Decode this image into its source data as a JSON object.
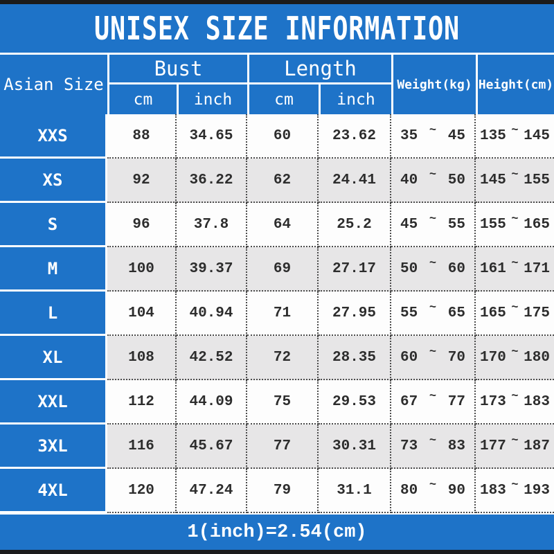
{
  "title": "UNISEX SIZE INFORMATION",
  "symbols": {
    "tilde": "~"
  },
  "header": {
    "size_column": "Asian Size",
    "bust": {
      "label": "Bust",
      "units": [
        "cm",
        "inch"
      ]
    },
    "length": {
      "label": "Length",
      "units": [
        "cm",
        "inch"
      ]
    },
    "weight": "Weight(kg)",
    "height": "Height(cm)"
  },
  "table": {
    "rows": [
      {
        "size": "XXS",
        "bust_cm": "88",
        "bust_inch": "34.65",
        "length_cm": "60",
        "length_inch": "23.62",
        "weight_min": "35",
        "weight_max": "45",
        "height_min": "135",
        "height_max": "145"
      },
      {
        "size": "XS",
        "bust_cm": "92",
        "bust_inch": "36.22",
        "length_cm": "62",
        "length_inch": "24.41",
        "weight_min": "40",
        "weight_max": "50",
        "height_min": "145",
        "height_max": "155"
      },
      {
        "size": "S",
        "bust_cm": "96",
        "bust_inch": "37.8",
        "length_cm": "64",
        "length_inch": "25.2",
        "weight_min": "45",
        "weight_max": "55",
        "height_min": "155",
        "height_max": "165"
      },
      {
        "size": "M",
        "bust_cm": "100",
        "bust_inch": "39.37",
        "length_cm": "69",
        "length_inch": "27.17",
        "weight_min": "50",
        "weight_max": "60",
        "height_min": "161",
        "height_max": "171"
      },
      {
        "size": "L",
        "bust_cm": "104",
        "bust_inch": "40.94",
        "length_cm": "71",
        "length_inch": "27.95",
        "weight_min": "55",
        "weight_max": "65",
        "height_min": "165",
        "height_max": "175"
      },
      {
        "size": "XL",
        "bust_cm": "108",
        "bust_inch": "42.52",
        "length_cm": "72",
        "length_inch": "28.35",
        "weight_min": "60",
        "weight_max": "70",
        "height_min": "170",
        "height_max": "180"
      },
      {
        "size": "XXL",
        "bust_cm": "112",
        "bust_inch": "44.09",
        "length_cm": "75",
        "length_inch": "29.53",
        "weight_min": "67",
        "weight_max": "77",
        "height_min": "173",
        "height_max": "183"
      },
      {
        "size": "3XL",
        "bust_cm": "116",
        "bust_inch": "45.67",
        "length_cm": "77",
        "length_inch": "30.31",
        "weight_min": "73",
        "weight_max": "83",
        "height_min": "177",
        "height_max": "187"
      },
      {
        "size": "4XL",
        "bust_cm": "120",
        "bust_inch": "47.24",
        "length_cm": "79",
        "length_inch": "31.1",
        "weight_min": "80",
        "weight_max": "90",
        "height_min": "183",
        "height_max": "193"
      }
    ]
  },
  "footer": {
    "note": "1(inch)=2.54(cm)"
  },
  "colors": {
    "blue": "#1e73c8",
    "alt_row": "#e7e6e7",
    "row": "#fdfdfd",
    "frame_bar": "#1b1b1b",
    "text": "#2d2d2d",
    "header_text": "#ffffff"
  },
  "chart_data": {
    "type": "table",
    "title": "UNISEX SIZE INFORMATION",
    "columns": [
      "Asian Size",
      "Bust cm",
      "Bust inch",
      "Length cm",
      "Length inch",
      "Weight(kg)",
      "Height(cm)"
    ],
    "rows": [
      [
        "XXS",
        "88",
        "34.65",
        "60",
        "23.62",
        "35~45",
        "135~145"
      ],
      [
        "XS",
        "92",
        "36.22",
        "62",
        "24.41",
        "40~50",
        "145~155"
      ],
      [
        "S",
        "96",
        "37.8",
        "64",
        "25.2",
        "45~55",
        "155~165"
      ],
      [
        "M",
        "100",
        "39.37",
        "69",
        "27.17",
        "50~60",
        "161~171"
      ],
      [
        "L",
        "104",
        "40.94",
        "71",
        "27.95",
        "55~65",
        "165~175"
      ],
      [
        "XL",
        "108",
        "42.52",
        "72",
        "28.35",
        "60~70",
        "170~180"
      ],
      [
        "XXL",
        "112",
        "44.09",
        "75",
        "29.53",
        "67~77",
        "173~183"
      ],
      [
        "3XL",
        "116",
        "45.67",
        "77",
        "30.31",
        "73~83",
        "177~187"
      ],
      [
        "4XL",
        "120",
        "47.24",
        "79",
        "31.1",
        "80~90",
        "183~193"
      ]
    ],
    "footnote": "1(inch)=2.54(cm)"
  }
}
